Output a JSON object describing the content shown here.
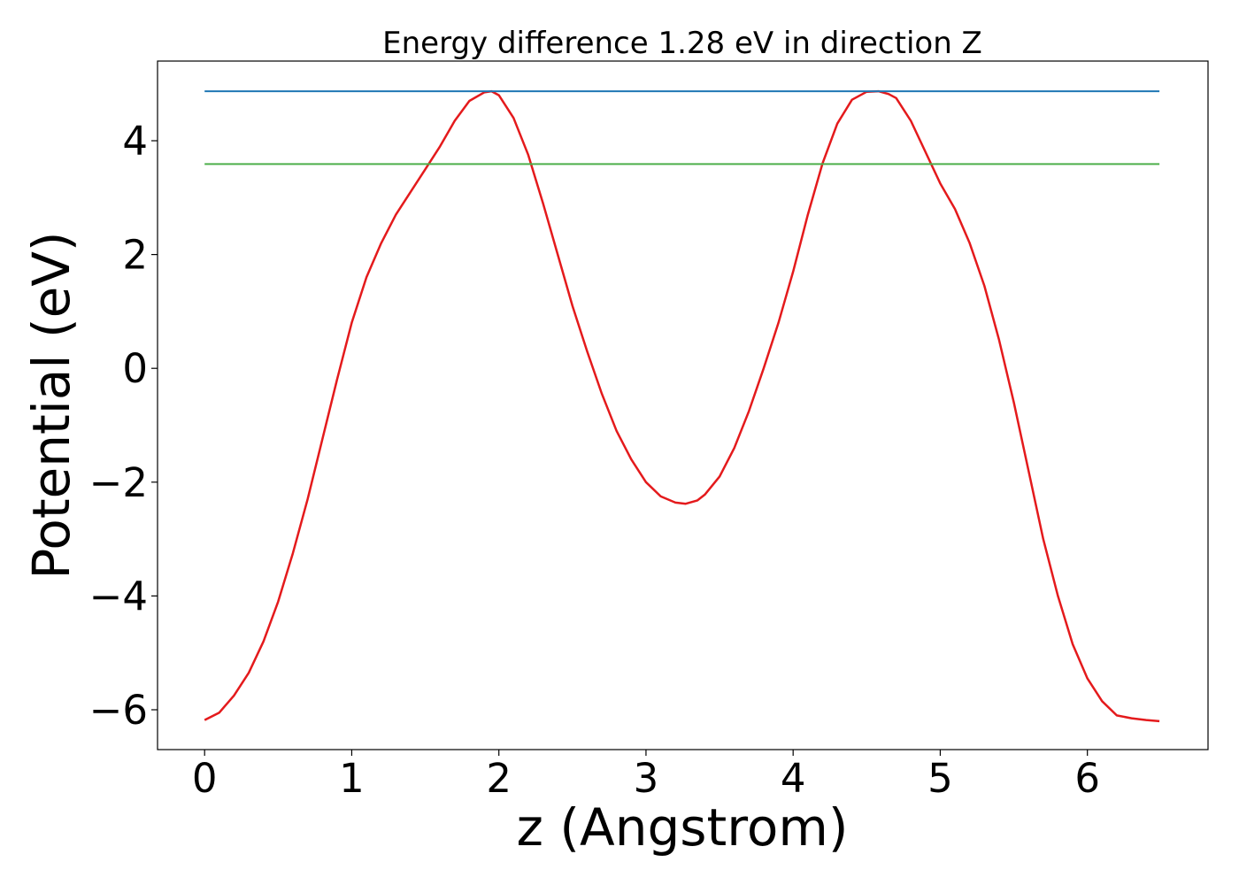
{
  "chart_data": {
    "type": "line",
    "title": "Energy difference 1.28 eV in direction Z",
    "xlabel": "z (Angstrom)",
    "ylabel": "Potential (eV)",
    "xlim": [
      -0.32,
      6.82
    ],
    "ylim": [
      -6.7,
      5.4
    ],
    "xticks": [
      {
        "value": 0,
        "label": "0"
      },
      {
        "value": 1,
        "label": "1"
      },
      {
        "value": 2,
        "label": "2"
      },
      {
        "value": 3,
        "label": "3"
      },
      {
        "value": 4,
        "label": "4"
      },
      {
        "value": 5,
        "label": "5"
      },
      {
        "value": 6,
        "label": "6"
      }
    ],
    "yticks": [
      {
        "value": -6,
        "label": "−6"
      },
      {
        "value": -4,
        "label": "−4"
      },
      {
        "value": -2,
        "label": "−2"
      },
      {
        "value": 0,
        "label": "0"
      },
      {
        "value": 2,
        "label": "2"
      },
      {
        "value": 4,
        "label": "4"
      }
    ],
    "grid": false,
    "series": [
      {
        "color": "#e41a1c",
        "kind": "curve",
        "x": [
          0.0,
          0.1,
          0.2,
          0.3,
          0.4,
          0.5,
          0.6,
          0.7,
          0.8,
          0.9,
          1.0,
          1.1,
          1.2,
          1.3,
          1.4,
          1.5,
          1.6,
          1.7,
          1.8,
          1.9,
          1.95,
          2.0,
          2.1,
          2.2,
          2.3,
          2.4,
          2.5,
          2.6,
          2.7,
          2.8,
          2.9,
          3.0,
          3.1,
          3.2,
          3.27,
          3.35,
          3.4,
          3.5,
          3.6,
          3.7,
          3.8,
          3.9,
          4.0,
          4.1,
          4.2,
          4.3,
          4.4,
          4.5,
          4.58,
          4.65,
          4.7,
          4.8,
          4.9,
          5.0,
          5.1,
          5.2,
          5.3,
          5.4,
          5.5,
          5.6,
          5.7,
          5.8,
          5.9,
          6.0,
          6.1,
          6.2,
          6.3,
          6.4,
          6.49
        ],
        "y": [
          -6.18,
          -6.05,
          -5.75,
          -5.35,
          -4.8,
          -4.1,
          -3.25,
          -2.3,
          -1.25,
          -0.2,
          0.8,
          1.6,
          2.2,
          2.7,
          3.1,
          3.5,
          3.9,
          4.35,
          4.7,
          4.85,
          4.87,
          4.8,
          4.4,
          3.75,
          2.9,
          2.0,
          1.1,
          0.3,
          -0.45,
          -1.1,
          -1.6,
          -2.0,
          -2.25,
          -2.36,
          -2.38,
          -2.32,
          -2.22,
          -1.9,
          -1.4,
          -0.75,
          0.0,
          0.8,
          1.7,
          2.7,
          3.6,
          4.3,
          4.72,
          4.86,
          4.87,
          4.82,
          4.75,
          4.35,
          3.8,
          3.25,
          2.8,
          2.2,
          1.45,
          0.5,
          -0.6,
          -1.8,
          -3.0,
          -4.0,
          -4.85,
          -5.45,
          -5.85,
          -6.1,
          -6.15,
          -6.18,
          -6.2
        ]
      },
      {
        "color": "#1f77b4",
        "kind": "hline",
        "x": [
          0.0,
          6.49
        ],
        "y": [
          4.87,
          4.87
        ]
      },
      {
        "color": "#4daf4a",
        "kind": "hline",
        "x": [
          0.0,
          6.49
        ],
        "y": [
          3.59,
          3.59
        ]
      }
    ]
  }
}
